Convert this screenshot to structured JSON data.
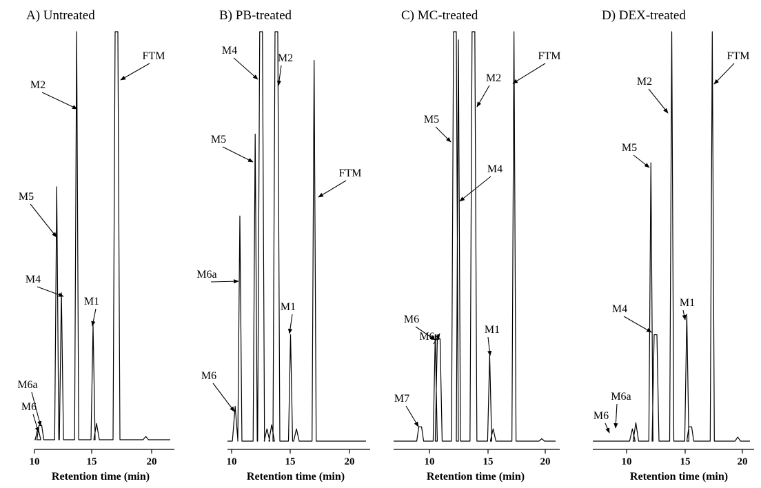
{
  "chart_data": [
    {
      "type": "line",
      "title": "A)  Untreated",
      "xlabel": "Retention time (min)",
      "ylabel": "",
      "xticks": [
        10,
        15,
        20
      ],
      "xlim": [
        9.7,
        21.8
      ],
      "ylim": [
        0,
        1
      ],
      "series": [
        {
          "x": [
            10.3,
            10.5,
            11.9,
            12.3,
            13.6,
            15.0,
            15.3,
            17.0,
            19.5
          ],
          "y": [
            0.03,
            0.035,
            0.62,
            0.36,
            1.0,
            0.28,
            0.04,
            1.0,
            0.008
          ]
        }
      ],
      "annotations": [
        {
          "text": "M6",
          "x": 10.3
        },
        {
          "text": "M6a",
          "x": 10.5
        },
        {
          "text": "M5",
          "x": 11.9
        },
        {
          "text": "M4",
          "x": 12.3
        },
        {
          "text": "M2",
          "x": 13.6
        },
        {
          "text": "M1",
          "x": 15.0
        },
        {
          "text": "FTM",
          "x": 17.0
        }
      ]
    },
    {
      "type": "line",
      "title": "B)  PB-treated",
      "xlabel": "Retention time (min)",
      "ylabel": "",
      "xticks": [
        10,
        15,
        20
      ],
      "xlim": [
        9.8,
        21.8
      ],
      "ylim": [
        0,
        1
      ],
      "series": [
        {
          "x": [
            10.3,
            10.7,
            12.0,
            12.5,
            13.0,
            13.4,
            13.8,
            15.0,
            15.5,
            17.0
          ],
          "y": [
            0.085,
            0.55,
            0.75,
            1.0,
            0.03,
            0.04,
            1.0,
            0.26,
            0.03,
            0.93
          ]
        }
      ],
      "annotations": [
        {
          "text": "M6",
          "x": 10.3
        },
        {
          "text": "M6a",
          "x": 10.7
        },
        {
          "text": "M5",
          "x": 12.0
        },
        {
          "text": "M4",
          "x": 12.5
        },
        {
          "text": "M2",
          "x": 13.8
        },
        {
          "text": "M1",
          "x": 15.0
        },
        {
          "text": "FTM",
          "x": 17.0
        }
      ]
    },
    {
      "type": "line",
      "title": "C)  MC-treated",
      "xlabel": "Retention time (min)",
      "ylabel": "",
      "xticks": [
        10,
        15,
        20
      ],
      "xlim": [
        8.0,
        21.3
      ],
      "ylim": [
        0,
        1
      ],
      "series": [
        {
          "x": [
            9.2,
            10.5,
            10.8,
            12.2,
            12.5,
            13.8,
            15.2,
            15.5,
            17.3,
            19.7
          ],
          "y": [
            0.035,
            0.26,
            0.25,
            1.0,
            0.98,
            1.0,
            0.21,
            0.03,
            1.0,
            0.006
          ]
        }
      ],
      "annotations": [
        {
          "text": "M7",
          "x": 9.2
        },
        {
          "text": "M6",
          "x": 10.5
        },
        {
          "text": "M6a",
          "x": 10.8
        },
        {
          "text": "M5",
          "x": 12.2
        },
        {
          "text": "M4",
          "x": 12.5
        },
        {
          "text": "M2",
          "x": 13.8
        },
        {
          "text": "M1",
          "x": 15.2
        },
        {
          "text": "FTM",
          "x": 17.3
        }
      ]
    },
    {
      "type": "line",
      "title": "D) DEX-treated",
      "xlabel": "Retention time (min)",
      "ylabel": "",
      "xticks": [
        10,
        15,
        20
      ],
      "xlim": [
        9.6,
        21.1
      ],
      "ylim": [
        0,
        1
      ],
      "series": [
        {
          "x": [
            10.5,
            10.8,
            12.1,
            12.5,
            13.9,
            15.2,
            15.5,
            17.4,
            19.6
          ],
          "y": [
            0.03,
            0.045,
            0.68,
            0.26,
            1.0,
            0.31,
            0.035,
            1.0,
            0.01
          ]
        }
      ],
      "annotations": [
        {
          "text": "M6",
          "x": 10.5
        },
        {
          "text": "M6a",
          "x": 10.8
        },
        {
          "text": "M5",
          "x": 12.1
        },
        {
          "text": "M4",
          "x": 12.5
        },
        {
          "text": "M2",
          "x": 13.9
        },
        {
          "text": "M1",
          "x": 15.2
        },
        {
          "text": "FTM",
          "x": 17.4
        }
      ]
    }
  ]
}
